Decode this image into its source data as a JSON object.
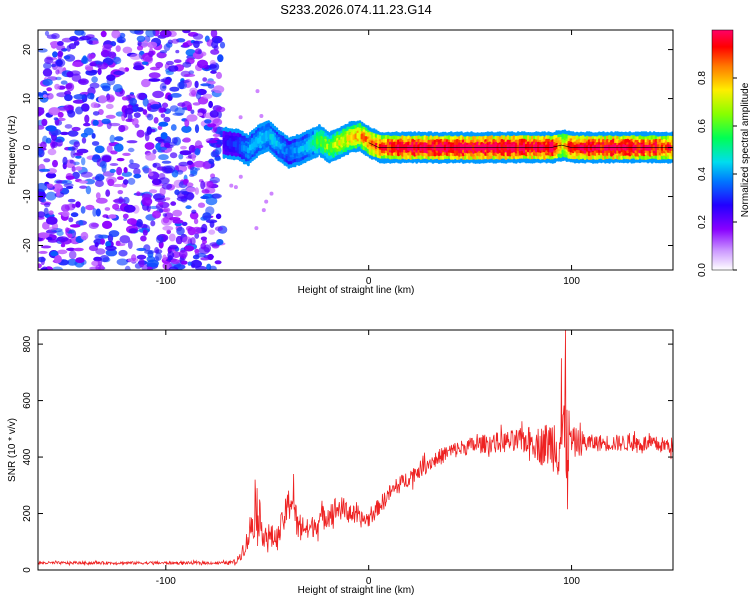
{
  "figure_title": "S233.2026.074.11.23.G14",
  "chart_data": [
    {
      "type": "heatmap",
      "panel": "top",
      "title": "",
      "xlabel": "Height of straight line (km)",
      "ylabel": "Frequency (Hz)",
      "xlim": [
        -163,
        150
      ],
      "ylim": [
        -25,
        24
      ],
      "xticks": [
        -100,
        0,
        100
      ],
      "yticks": [
        -20,
        -10,
        0,
        10,
        20
      ],
      "grid": false,
      "noise_region_x": [
        -163,
        -72
      ],
      "noise_amplitude_range": [
        0.05,
        0.3
      ],
      "ridge": {
        "description_values_only": true,
        "x": [
          -72,
          -65,
          -60,
          -55,
          -50,
          -45,
          -40,
          -35,
          -30,
          -25,
          -20,
          -15,
          -10,
          -5,
          0,
          5,
          10,
          20,
          40,
          60,
          80,
          90,
          95,
          100,
          120,
          140,
          150
        ],
        "freq": [
          1,
          0.5,
          -0.5,
          1.5,
          2.5,
          0.5,
          -1,
          -0.5,
          0.5,
          1.5,
          0,
          1,
          2,
          2.5,
          1,
          0,
          0,
          0,
          0,
          0,
          0,
          0,
          0.5,
          0,
          0,
          0,
          0
        ],
        "amplitude": [
          0.2,
          0.25,
          0.35,
          0.4,
          0.4,
          0.35,
          0.3,
          0.35,
          0.4,
          0.55,
          0.6,
          0.65,
          0.7,
          0.75,
          0.8,
          0.85,
          0.9,
          0.95,
          0.95,
          0.95,
          0.95,
          0.95,
          0.7,
          0.9,
          0.95,
          0.9,
          0.85
        ]
      },
      "colorbar": {
        "label": "Normalized spectral amplitude",
        "range": [
          0,
          1
        ],
        "ticks": [
          "0.0",
          "0.2",
          "0.4",
          "0.6",
          "0.8"
        ],
        "colormap": [
          "#ffffff",
          "#9900ff",
          "#3300ff",
          "#0066ff",
          "#00ccff",
          "#00ff66",
          "#66ff00",
          "#ffff00",
          "#ff8800",
          "#ff0000",
          "#ff0066"
        ]
      }
    },
    {
      "type": "line",
      "panel": "bottom",
      "title": "",
      "xlabel": "Height of straight line (km)",
      "ylabel": "SNR (10 * v/v)",
      "xlim": [
        -163,
        150
      ],
      "ylim": [
        0,
        850
      ],
      "xticks": [
        -100,
        0,
        100
      ],
      "yticks": [
        0,
        200,
        400,
        600,
        800
      ],
      "grid": false,
      "series": [
        {
          "color": "#ee2222",
          "x": [
            -163,
            -140,
            -120,
            -100,
            -80,
            -70,
            -65,
            -60,
            -57,
            -55,
            -53,
            -50,
            -45,
            -40,
            -38,
            -35,
            -33,
            -30,
            -25,
            -20,
            -15,
            -10,
            -5,
            0,
            10,
            20,
            30,
            40,
            50,
            60,
            70,
            80,
            85,
            90,
            95,
            97,
            100,
            110,
            120,
            130,
            140,
            150
          ],
          "values": [
            25,
            25,
            25,
            25,
            25,
            25,
            30,
            100,
            180,
            230,
            150,
            120,
            110,
            220,
            260,
            150,
            160,
            140,
            170,
            200,
            220,
            210,
            180,
            180,
            270,
            330,
            380,
            420,
            440,
            450,
            455,
            460,
            440,
            450,
            460,
            470,
            450,
            450,
            450,
            450,
            445,
            440
          ],
          "noise_amplitude": [
            5,
            5,
            5,
            5,
            5,
            5,
            10,
            40,
            80,
            90,
            60,
            50,
            40,
            60,
            80,
            50,
            50,
            40,
            40,
            50,
            45,
            40,
            30,
            30,
            30,
            30,
            30,
            30,
            30,
            35,
            40,
            50,
            70,
            90,
            160,
            200,
            60,
            30,
            30,
            30,
            30,
            30
          ],
          "peaks": [
            {
              "x": 97,
              "y": 850
            },
            {
              "x": 95,
              "y": 750
            },
            {
              "x": 98,
              "y": 215
            },
            {
              "x": -56,
              "y": 320
            },
            {
              "x": -37,
              "y": 340
            }
          ]
        }
      ]
    }
  ]
}
